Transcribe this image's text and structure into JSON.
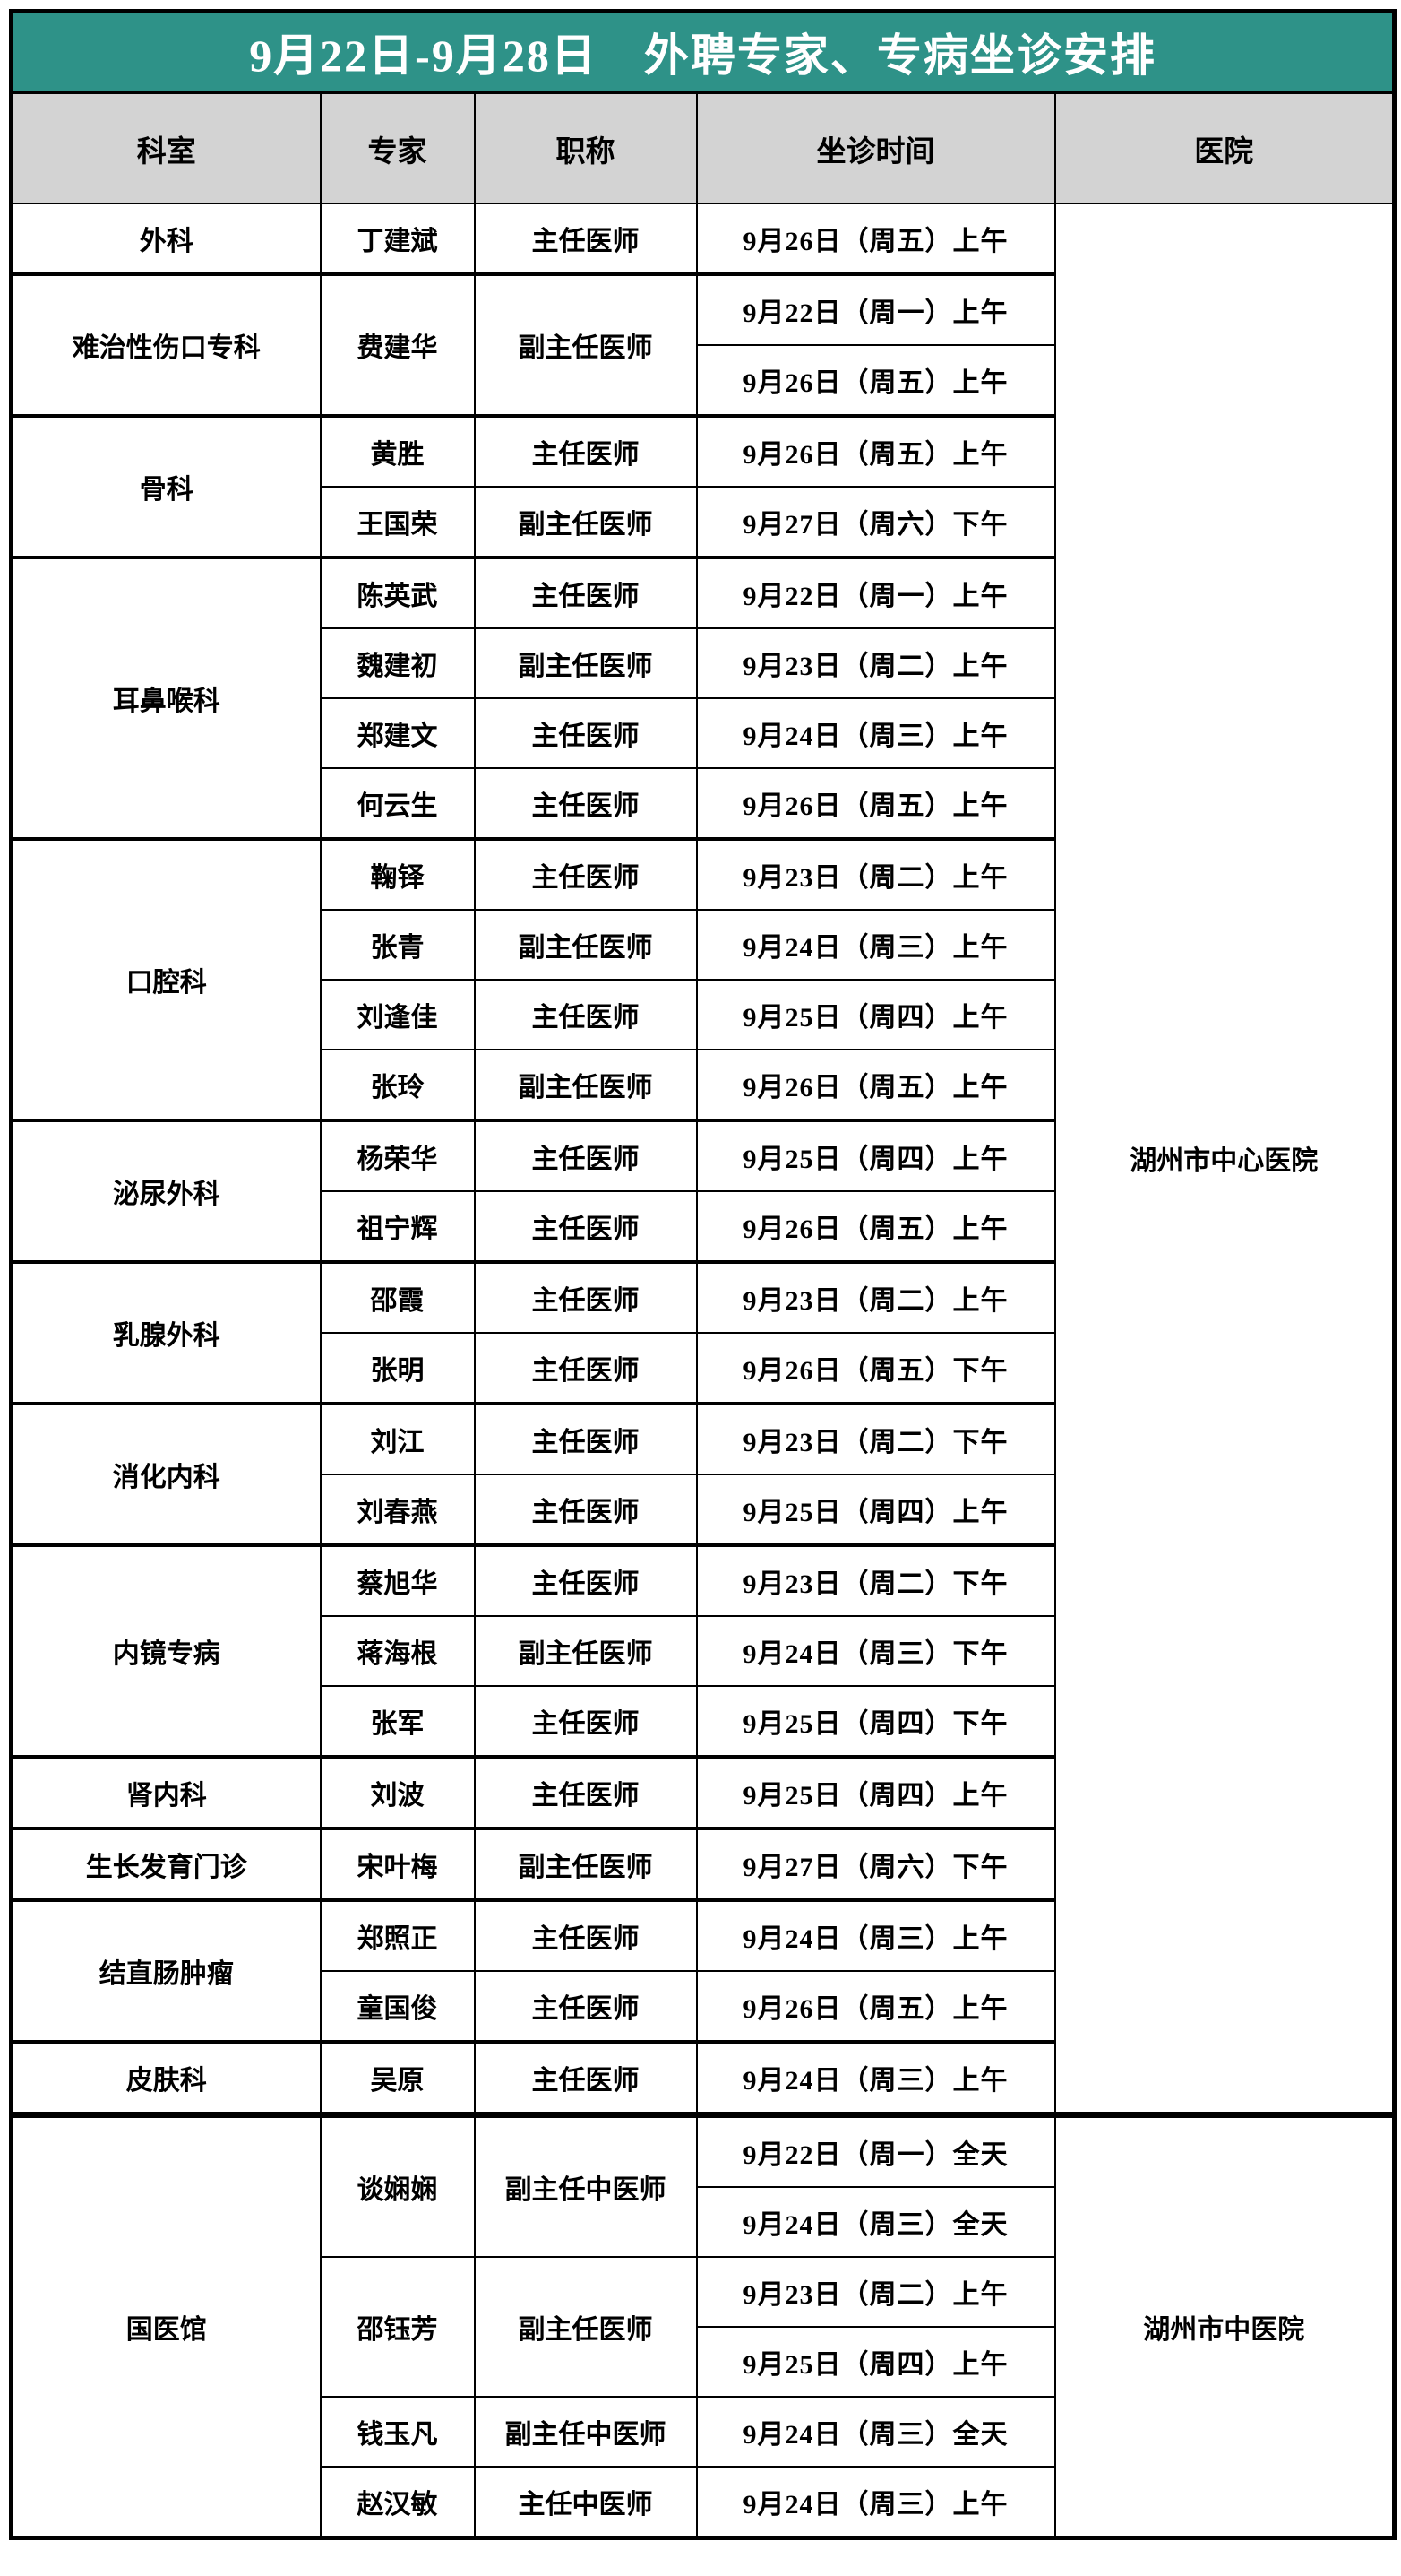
{
  "title": "9月22日-9月28日　外聘专家、专病坐诊安排",
  "columns": [
    "科室",
    "专家",
    "职称",
    "坐诊时间",
    "医院"
  ],
  "theme": {
    "title_bg": "#2E9288",
    "title_text": "#FFFFFF",
    "column_header_bg": "#D3D3D3",
    "border_color": "#000000",
    "body_bg": "#FFFFFF"
  },
  "departments": [
    {
      "name": "外科",
      "hospital": "湖州市中心医院",
      "experts": [
        {
          "name": "丁建斌",
          "title": "主任医师",
          "times": [
            "9月26日（周五）上午"
          ]
        }
      ]
    },
    {
      "name": "难治性伤口专科",
      "hospital": "湖州市中心医院",
      "experts": [
        {
          "name": "费建华",
          "title": "副主任医师",
          "times": [
            "9月22日（周一）上午",
            "9月26日（周五）上午"
          ]
        }
      ]
    },
    {
      "name": "骨科",
      "hospital": "湖州市中心医院",
      "experts": [
        {
          "name": "黄胜",
          "title": "主任医师",
          "times": [
            "9月26日（周五）上午"
          ]
        },
        {
          "name": "王国荣",
          "title": "副主任医师",
          "times": [
            "9月27日（周六）下午"
          ]
        }
      ]
    },
    {
      "name": "耳鼻喉科",
      "hospital": "湖州市中心医院",
      "experts": [
        {
          "name": "陈英武",
          "title": "主任医师",
          "times": [
            "9月22日（周一）上午"
          ]
        },
        {
          "name": "魏建初",
          "title": "副主任医师",
          "times": [
            "9月23日（周二）上午"
          ]
        },
        {
          "name": "郑建文",
          "title": "主任医师",
          "times": [
            "9月24日（周三）上午"
          ]
        },
        {
          "name": "何云生",
          "title": "主任医师",
          "times": [
            "9月26日（周五）上午"
          ]
        }
      ]
    },
    {
      "name": "口腔科",
      "hospital": "湖州市中心医院",
      "experts": [
        {
          "name": "鞠铎",
          "title": "主任医师",
          "times": [
            "9月23日（周二）上午"
          ]
        },
        {
          "name": "张青",
          "title": "副主任医师",
          "times": [
            "9月24日（周三）上午"
          ]
        },
        {
          "name": "刘逢佳",
          "title": "主任医师",
          "times": [
            "9月25日（周四）上午"
          ]
        },
        {
          "name": "张玲",
          "title": "副主任医师",
          "times": [
            "9月26日（周五）上午"
          ]
        }
      ]
    },
    {
      "name": "泌尿外科",
      "hospital": "湖州市中心医院",
      "experts": [
        {
          "name": "杨荣华",
          "title": "主任医师",
          "times": [
            "9月25日（周四）上午"
          ]
        },
        {
          "name": "祖宁辉",
          "title": "主任医师",
          "times": [
            "9月26日（周五）上午"
          ]
        }
      ]
    },
    {
      "name": "乳腺外科",
      "hospital": "湖州市中心医院",
      "experts": [
        {
          "name": "邵霞",
          "title": "主任医师",
          "times": [
            "9月23日（周二）上午"
          ]
        },
        {
          "name": "张明",
          "title": "主任医师",
          "times": [
            "9月26日（周五）下午"
          ]
        }
      ]
    },
    {
      "name": "消化内科",
      "hospital": "湖州市中心医院",
      "experts": [
        {
          "name": "刘江",
          "title": "主任医师",
          "times": [
            "9月23日（周二）下午"
          ]
        },
        {
          "name": "刘春燕",
          "title": "主任医师",
          "times": [
            "9月25日（周四）上午"
          ]
        }
      ]
    },
    {
      "name": "内镜专病",
      "hospital": "湖州市中心医院",
      "experts": [
        {
          "name": "蔡旭华",
          "title": "主任医师",
          "times": [
            "9月23日（周二）下午"
          ]
        },
        {
          "name": "蒋海根",
          "title": "副主任医师",
          "times": [
            "9月24日（周三）下午"
          ]
        },
        {
          "name": "张军",
          "title": "主任医师",
          "times": [
            "9月25日（周四）下午"
          ]
        }
      ]
    },
    {
      "name": "肾内科",
      "hospital": "湖州市中心医院",
      "experts": [
        {
          "name": "刘波",
          "title": "主任医师",
          "times": [
            "9月25日（周四）上午"
          ]
        }
      ]
    },
    {
      "name": "生长发育门诊",
      "hospital": "湖州市中心医院",
      "experts": [
        {
          "name": "宋叶梅",
          "title": "副主任医师",
          "times": [
            "9月27日（周六）下午"
          ]
        }
      ]
    },
    {
      "name": "结直肠肿瘤",
      "hospital": "湖州市中心医院",
      "experts": [
        {
          "name": "郑照正",
          "title": "主任医师",
          "times": [
            "9月24日（周三）上午"
          ]
        },
        {
          "name": "童国俊",
          "title": "主任医师",
          "times": [
            "9月26日（周五）上午"
          ]
        }
      ]
    },
    {
      "name": "皮肤科",
      "hospital": "湖州市中心医院",
      "experts": [
        {
          "name": "吴原",
          "title": "主任医师",
          "times": [
            "9月24日（周三）上午"
          ]
        }
      ]
    },
    {
      "name": "国医馆",
      "hospital": "湖州市中医院",
      "experts": [
        {
          "name": "谈娴娴",
          "title": "副主任中医师",
          "times": [
            "9月22日（周一）全天",
            "9月24日（周三）全天"
          ]
        },
        {
          "name": "邵钰芳",
          "title": "副主任医师",
          "times": [
            "9月23日（周二）上午",
            "9月25日（周四）上午"
          ]
        },
        {
          "name": "钱玉凡",
          "title": "副主任中医师",
          "times": [
            "9月24日（周三）全天"
          ]
        },
        {
          "name": "赵汉敏",
          "title": "主任中医师",
          "times": [
            "9月24日（周三）上午"
          ]
        }
      ]
    }
  ]
}
